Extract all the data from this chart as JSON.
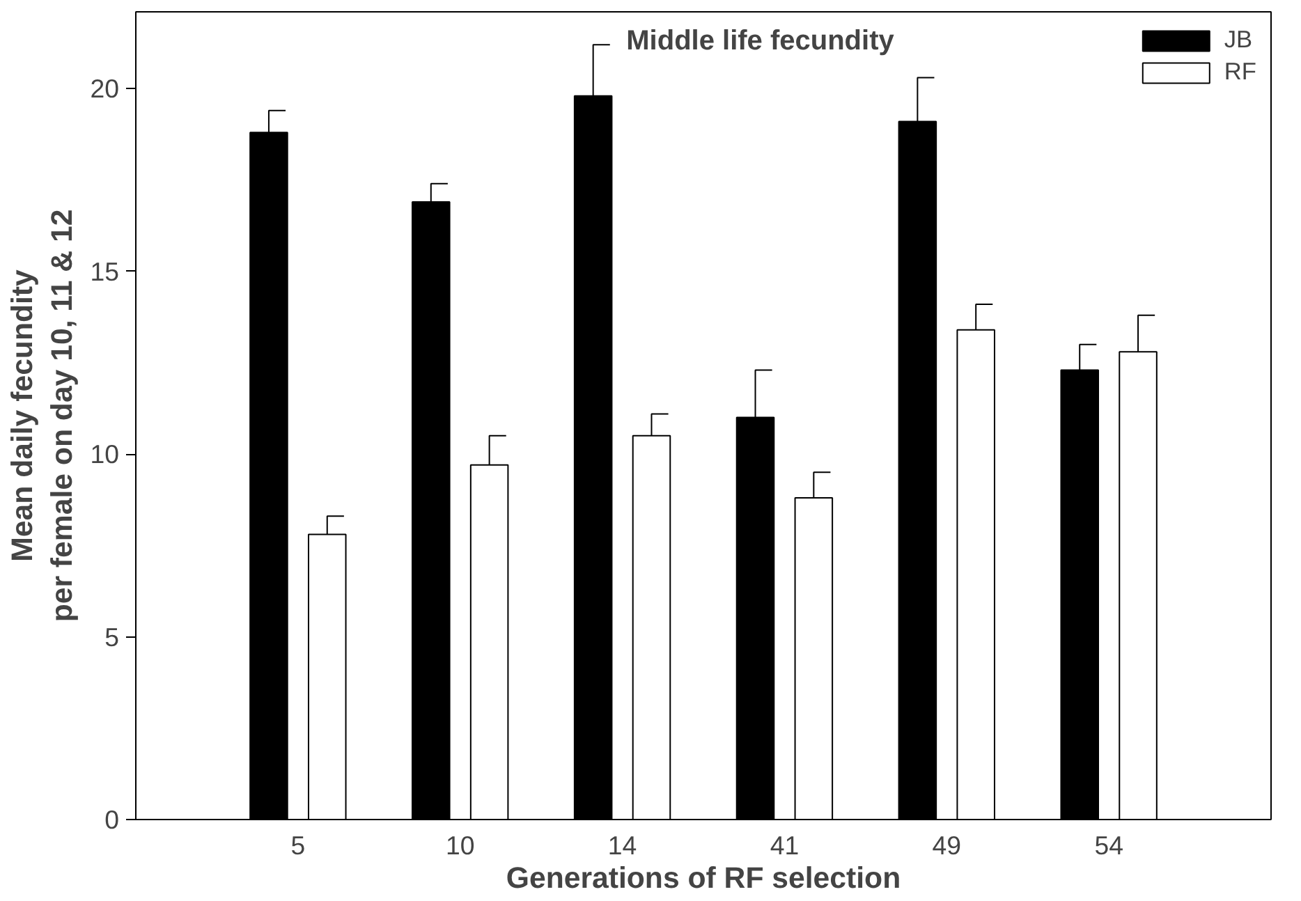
{
  "chart_data": {
    "type": "bar",
    "title": "Middle life fecundity",
    "xlabel": "Generations of RF selection",
    "ylabel": "Mean daily fecundity\nper female on day 10, 11 & 12",
    "categories": [
      "5",
      "10",
      "14",
      "41",
      "49",
      "54"
    ],
    "series": [
      {
        "name": "JB",
        "color": "#000000",
        "values": [
          18.8,
          16.9,
          19.8,
          11.0,
          19.1,
          12.3
        ],
        "errors": [
          [
            18.8,
            19.4
          ],
          [
            16.9,
            17.4
          ],
          [
            19.8,
            21.2
          ],
          [
            11.0,
            12.3
          ],
          [
            19.1,
            20.3
          ],
          [
            12.3,
            13.0
          ]
        ]
      },
      {
        "name": "RF",
        "color": "#ffffff",
        "values": [
          7.8,
          9.7,
          10.5,
          8.8,
          13.4,
          12.8
        ],
        "errors": [
          [
            7.8,
            8.3
          ],
          [
            9.7,
            10.5
          ],
          [
            10.5,
            11.1
          ],
          [
            8.8,
            9.5
          ],
          [
            13.4,
            14.1
          ],
          [
            12.8,
            13.8
          ]
        ]
      }
    ],
    "ylim": [
      0,
      22.1
    ],
    "yticks": [
      0,
      5,
      10,
      15,
      20
    ],
    "grid": false,
    "legend": "top right"
  }
}
